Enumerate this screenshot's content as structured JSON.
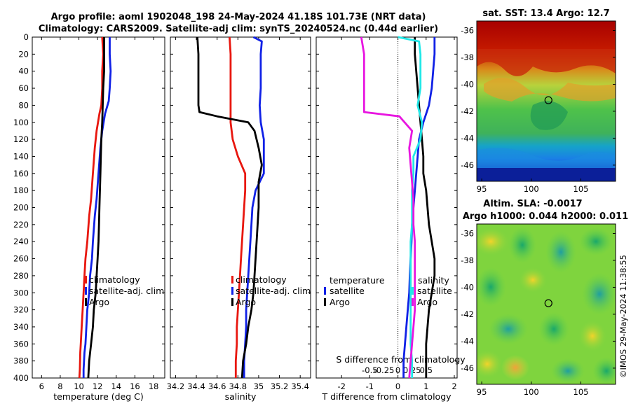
{
  "titles": {
    "line1": "Argo profile: aoml 1902048_198 24-May-2024 41.18S 101.73E (NRT data)",
    "line2": "Climatology: CARS2009. Satellite-adj clim: synTS_20240524.nc (0.44d earlier)",
    "sst": "sat. SST: 13.4 Argo: 12.7",
    "alt1": "Altim. SLA: -0.0017",
    "alt2": "Argo h1000: 0.044 h2000: 0.011",
    "stamp": "©IMOS 29-May-2024 11:38:55"
  },
  "colors": {
    "climatology": "#e8170f",
    "satellite": "#1021e6",
    "argo": "#000000",
    "s_climatology": "#e815e0",
    "s_satellite": "#22e8e8"
  },
  "chart_data": [
    {
      "type": "line",
      "id": "temperature",
      "xlabel": "temperature (deg C)",
      "ylabel": "",
      "xlim": [
        5,
        19.2
      ],
      "ylim": [
        400,
        0
      ],
      "xticks": [
        "6",
        "8",
        "10",
        "12",
        "14",
        "16",
        "18"
      ],
      "xtick_values": [
        6,
        8,
        10,
        12,
        14,
        16,
        18
      ],
      "yticks": [
        "0",
        "20",
        "40",
        "60",
        "80",
        "100",
        "120",
        "140",
        "160",
        "180",
        "200",
        "220",
        "240",
        "260",
        "280",
        "300",
        "320",
        "340",
        "360",
        "380",
        "400"
      ],
      "ytick_values": [
        0,
        20,
        40,
        60,
        80,
        100,
        120,
        140,
        160,
        180,
        200,
        220,
        240,
        260,
        280,
        300,
        320,
        340,
        360,
        380,
        400
      ],
      "legend": [
        "climatology",
        "satellite-adj. clim",
        "Argo"
      ],
      "series": [
        {
          "name": "climatology",
          "color_key": "climatology",
          "x": [
            12.5,
            12.6,
            12.5,
            12.5,
            12.4,
            12.2,
            11.9,
            11.7,
            11.5,
            11.3,
            11.1,
            10.9,
            10.7,
            10.6,
            10.5,
            10.4,
            10.3,
            10.2,
            10.15,
            10.1,
            10.05
          ],
          "y": [
            0,
            20,
            40,
            60,
            80,
            90,
            110,
            130,
            160,
            190,
            210,
            240,
            260,
            280,
            300,
            320,
            340,
            360,
            370,
            390,
            400
          ]
        },
        {
          "name": "satellite-adj. clim",
          "color_key": "satellite",
          "x": [
            13.3,
            13.3,
            13.4,
            13.3,
            13.2,
            12.8,
            12.5,
            12.3,
            12.1,
            11.9,
            11.7,
            11.5,
            11.4,
            11.2,
            11.1,
            10.9,
            10.8,
            10.7,
            10.6,
            10.5,
            10.5
          ],
          "y": [
            0,
            20,
            40,
            60,
            75,
            90,
            110,
            130,
            160,
            190,
            210,
            240,
            260,
            280,
            300,
            320,
            340,
            360,
            370,
            390,
            400
          ]
        },
        {
          "name": "Argo",
          "color_key": "argo",
          "x": [
            12.7,
            12.7,
            12.7,
            12.6,
            12.55,
            12.5,
            12.4,
            12.35,
            12.3,
            12.25,
            12.2,
            12.15,
            12.1,
            12.0,
            11.9,
            11.8,
            11.6,
            11.5,
            11.3,
            11.1,
            11.0
          ],
          "y": [
            0,
            20,
            40,
            60,
            80,
            100,
            120,
            140,
            160,
            180,
            200,
            220,
            240,
            260,
            280,
            300,
            320,
            340,
            360,
            380,
            400
          ]
        }
      ]
    },
    {
      "type": "line",
      "id": "salinity",
      "xlabel": "salinity",
      "ylabel": "",
      "xlim": [
        34.15,
        35.5
      ],
      "ylim": [
        400,
        0
      ],
      "xticks": [
        "34.2",
        "34.4",
        "34.6",
        "34.8",
        "35",
        "35.2",
        "35.4"
      ],
      "xtick_values": [
        34.2,
        34.4,
        34.6,
        34.8,
        35.0,
        35.2,
        35.4
      ],
      "legend": [
        "climatology",
        "satellite-adj. clim",
        "Argo"
      ],
      "series": [
        {
          "name": "climatology",
          "color_key": "climatology",
          "x": [
            34.72,
            34.73,
            34.73,
            34.73,
            34.73,
            34.73,
            34.75,
            34.8,
            34.87,
            34.87,
            34.86,
            34.85,
            34.84,
            34.83,
            34.82,
            34.81,
            34.8,
            34.79,
            34.79,
            34.78,
            34.78
          ],
          "y": [
            0,
            20,
            40,
            60,
            80,
            100,
            120,
            140,
            160,
            180,
            200,
            220,
            240,
            260,
            280,
            300,
            320,
            340,
            360,
            380,
            400
          ]
        },
        {
          "name": "satellite-adj. clim",
          "color_key": "satellite",
          "x": [
            34.95,
            35.03,
            35.02,
            35.02,
            35.01,
            35.02,
            35.05,
            35.05,
            35.05,
            34.97,
            34.94,
            34.93,
            34.92,
            34.91,
            34.9,
            34.89,
            34.88,
            34.88,
            34.87,
            34.86,
            34.86
          ],
          "y": [
            0,
            5,
            20,
            60,
            80,
            100,
            120,
            140,
            160,
            180,
            200,
            220,
            240,
            260,
            280,
            300,
            320,
            340,
            360,
            380,
            400
          ]
        },
        {
          "name": "Argo",
          "color_key": "argo",
          "x": [
            34.41,
            34.42,
            34.42,
            34.42,
            34.42,
            34.43,
            34.6,
            34.9,
            34.96,
            35.0,
            35.03,
            35.0,
            35.0,
            34.98,
            34.96,
            34.95,
            34.93,
            34.9,
            34.88,
            34.85,
            34.84
          ],
          "y": [
            0,
            20,
            40,
            60,
            80,
            88,
            93,
            100,
            110,
            130,
            150,
            170,
            200,
            240,
            280,
            300,
            320,
            340,
            360,
            380,
            400
          ]
        }
      ]
    },
    {
      "type": "line",
      "id": "difference",
      "xlabel": "T difference from climatology",
      "xlabel_top": "S difference from climatology",
      "ylabel": "",
      "xlim": [
        -2.9,
        2.1
      ],
      "ylim": [
        400,
        0
      ],
      "xticks": [
        "-2",
        "-1",
        "0",
        "1",
        "2"
      ],
      "xtick_values": [
        -2,
        -1,
        0,
        1,
        2
      ],
      "s_ticks": [
        "-0.5",
        "-0.25",
        "0",
        "0.25",
        "0.5"
      ],
      "s_tick_values": [
        -0.5,
        -0.25,
        0,
        0.25,
        0.5
      ],
      "legend_left_title": "temperature",
      "legend_right_title": "salinity",
      "legend_left": [
        "satellite",
        "Argo"
      ],
      "legend_right": [
        "satellite",
        "Argo"
      ],
      "series": [
        {
          "name": "T satellite",
          "color_key": "satellite",
          "x": [
            1.3,
            1.3,
            1.25,
            1.2,
            1.1,
            0.9,
            0.75,
            0.7,
            0.65,
            0.6,
            0.55,
            0.5,
            0.48,
            0.45,
            0.42,
            0.4,
            0.35,
            0.3,
            0.25,
            0.2,
            0.2
          ],
          "y": [
            0,
            20,
            40,
            60,
            80,
            100,
            120,
            140,
            160,
            180,
            200,
            220,
            240,
            260,
            280,
            300,
            320,
            340,
            360,
            380,
            400
          ]
        },
        {
          "name": "T Argo",
          "color_key": "argo",
          "x": [
            0.6,
            0.6,
            0.65,
            0.7,
            0.75,
            0.8,
            0.85,
            0.9,
            0.9,
            1.0,
            1.05,
            1.1,
            1.2,
            1.3,
            1.3,
            1.2,
            1.1,
            1.05,
            1.0,
            1.0,
            1.0
          ],
          "y": [
            0,
            20,
            40,
            60,
            80,
            100,
            120,
            140,
            160,
            180,
            200,
            220,
            240,
            260,
            280,
            300,
            320,
            340,
            360,
            380,
            400
          ]
        },
        {
          "name": "S satellite",
          "color_key": "s_satellite",
          "x": [
            0.0,
            0.75,
            0.8,
            0.8,
            0.7,
            0.85,
            0.8,
            0.55,
            0.55,
            0.5,
            0.5,
            0.5,
            0.45,
            0.45,
            0.45,
            0.45,
            0.45,
            0.45,
            0.45,
            0.5,
            0.5
          ],
          "y": [
            0,
            5,
            20,
            60,
            80,
            100,
            120,
            140,
            160,
            180,
            200,
            220,
            240,
            260,
            280,
            300,
            320,
            340,
            360,
            380,
            400
          ]
        },
        {
          "name": "S Argo",
          "color_key": "s_climatology",
          "x": [
            -1.3,
            -1.2,
            -1.2,
            -1.2,
            -1.2,
            -1.2,
            0.05,
            0.5,
            0.4,
            0.45,
            0.5,
            0.55,
            0.55,
            0.6,
            0.6,
            0.6,
            0.6,
            0.55,
            0.5,
            0.45,
            0.4
          ],
          "y": [
            0,
            20,
            40,
            60,
            80,
            88,
            93,
            110,
            130,
            150,
            170,
            190,
            220,
            240,
            280,
            300,
            320,
            340,
            360,
            380,
            400
          ]
        }
      ]
    },
    {
      "type": "heatmap",
      "id": "sst_map",
      "title": "sat. SST: 13.4 Argo: 12.7",
      "xticks": [
        "95",
        "100",
        "105"
      ],
      "xtick_values": [
        95,
        100,
        105
      ],
      "yticks": [
        "-36",
        "-38",
        "-40",
        "-42",
        "-44",
        "-46"
      ],
      "ytick_values": [
        -36,
        -38,
        -40,
        -42,
        -44,
        -46
      ],
      "xlim": [
        94.5,
        108.5
      ],
      "ylim": [
        -47.2,
        -35.3
      ],
      "marker": {
        "lon": 101.73,
        "lat": -41.18
      }
    },
    {
      "type": "heatmap",
      "id": "sla_map",
      "title": "Altim. SLA: -0.0017",
      "subtitle": "Argo h1000: 0.044 h2000: 0.011",
      "xticks": [
        "95",
        "100",
        "105"
      ],
      "xtick_values": [
        95,
        100,
        105
      ],
      "yticks": [
        "-36",
        "-38",
        "-40",
        "-42",
        "-44",
        "-46"
      ],
      "ytick_values": [
        -36,
        -38,
        -40,
        -42,
        -44,
        -46
      ],
      "xlim": [
        94.5,
        108.5
      ],
      "ylim": [
        -47.2,
        -35.3
      ],
      "marker": {
        "lon": 101.73,
        "lat": -41.18
      }
    }
  ]
}
